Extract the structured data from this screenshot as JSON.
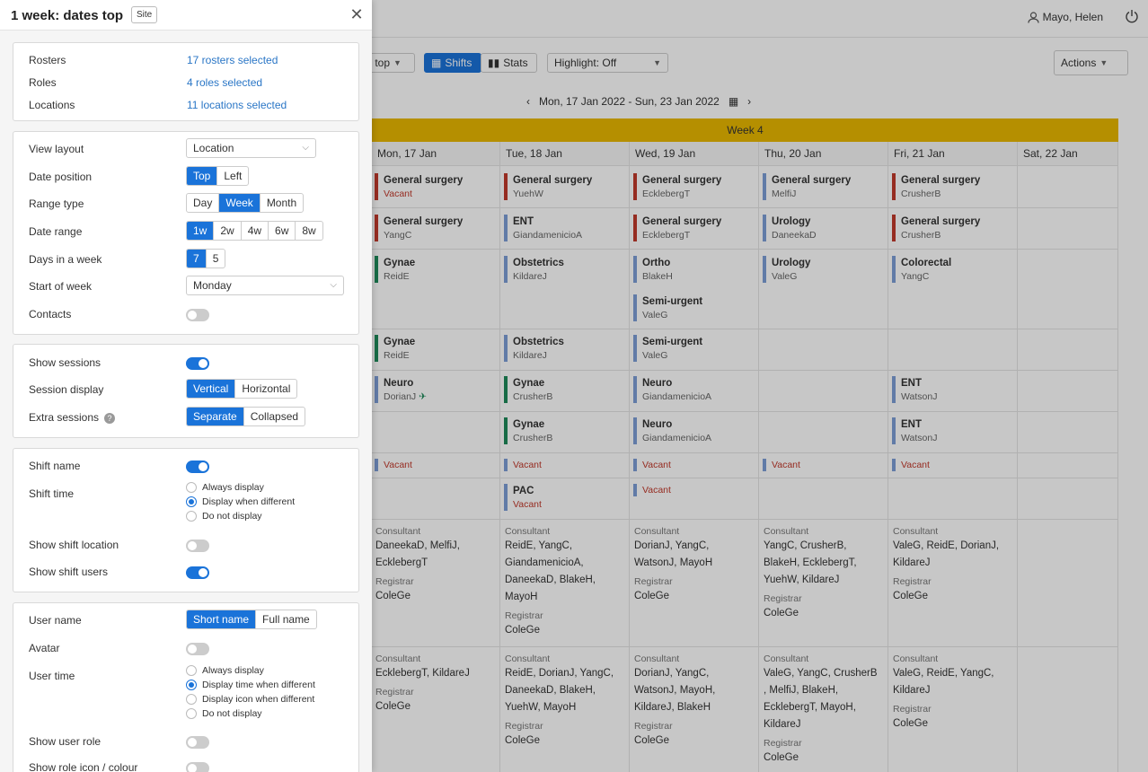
{
  "app": {
    "user_name": "Mayo, Helen",
    "toolbar": {
      "view_label": "s top",
      "shifts_label": "Shifts",
      "stats_label": "Stats",
      "highlight_label": "Highlight: Off",
      "actions_label": "Actions"
    },
    "date_range": "Mon, 17 Jan 2022 - Sun, 23 Jan 2022",
    "week_label": "Week 4",
    "days": [
      "Mon, 17 Jan",
      "Tue, 18 Jan",
      "Wed, 19 Jan",
      "Thu, 20 Jan",
      "Fri, 21 Jan",
      "Sat, 22 Jan"
    ],
    "columns": [
      {
        "shifts": [
          {
            "name": "General surgery",
            "user": "Vacant",
            "vacant": true,
            "color": "#c0392b"
          },
          {
            "name": "General surgery",
            "user": "YangC",
            "color": "#c0392b"
          },
          {
            "name": "Gynae",
            "user": "ReidE",
            "color": "#1e8a5a"
          },
          {
            "name": "Gynae",
            "user": "ReidE",
            "color": "#1e8a5a"
          },
          {
            "name": "Neuro",
            "user": "DorianJ",
            "color": "#7d9ed6"
          },
          {
            "name": "",
            "user": "Vacant",
            "vacant": true,
            "color": "#7d9ed6"
          }
        ],
        "consultant_label": "Consultant",
        "consultant1": "DaneekaD,  MelfiJ,",
        "consultant2": "EcklebergT",
        "registrar_label": "Registrar",
        "registrar": "ColeGe",
        "consultant_b1": "EcklebergT,  KildareJ",
        "registrar_b": "ColeGe"
      },
      {
        "shifts": [
          {
            "name": "General surgery",
            "user": "YuehW",
            "color": "#c0392b"
          },
          {
            "name": "ENT",
            "user": "GiandamenicioA",
            "color": "#7d9ed6"
          },
          {
            "name": "Obstetrics",
            "user": "KildareJ",
            "color": "#7d9ed6"
          },
          {
            "name": "Obstetrics",
            "user": "KildareJ",
            "color": "#7d9ed6"
          },
          {
            "name": "Gynae",
            "user": "CrusherB",
            "color": "#1e8a5a"
          },
          {
            "name": "Gynae",
            "user": "CrusherB",
            "color": "#1e8a5a"
          },
          {
            "name": "",
            "user": "Vacant",
            "vacant": true,
            "color": "#7d9ed6"
          },
          {
            "name": "PAC",
            "user": "Vacant",
            "vacant": true,
            "color": "#7d9ed6"
          }
        ],
        "consultant_label": "Consultant",
        "consultant_lines": [
          "ReidE,  YangC,",
          "GiandamenicioA,",
          "DaneekaD,  BlakeH,",
          "MayoH"
        ],
        "registrar_label": "Registrar",
        "registrar": "ColeGe",
        "consultant_b_lines": [
          "ReidE,  DorianJ,  YangC,",
          "DaneekaD,  BlakeH,",
          "YuehW,  MayoH"
        ],
        "registrar_b": "ColeGe"
      },
      {
        "shifts": [
          {
            "name": "General surgery",
            "user": "EcklebergT",
            "color": "#c0392b"
          },
          {
            "name": "General surgery",
            "user": "EcklebergT",
            "color": "#c0392b"
          },
          {
            "name": "Ortho",
            "user": "BlakeH",
            "color": "#7d9ed6"
          },
          {
            "name": "Semi-urgent",
            "user": "ValeG",
            "color": "#7d9ed6"
          },
          {
            "name": "Semi-urgent",
            "user": "ValeG",
            "color": "#7d9ed6"
          },
          {
            "name": "Neuro",
            "user": "GiandamenicioA",
            "color": "#7d9ed6"
          },
          {
            "name": "Neuro",
            "user": "GiandamenicioA",
            "color": "#7d9ed6"
          },
          {
            "name": "",
            "user": "Vacant",
            "vacant": true,
            "color": "#7d9ed6"
          },
          {
            "name": "",
            "user": "Vacant",
            "vacant": true,
            "color": "#7d9ed6"
          }
        ],
        "consultant_label": "Consultant",
        "consultant_lines": [
          "DorianJ,  YangC,",
          "WatsonJ,  MayoH"
        ],
        "registrar_label": "Registrar",
        "registrar": "ColeGe",
        "consultant_b_lines": [
          "DorianJ,  YangC,",
          "WatsonJ,  MayoH,",
          "KildareJ,  BlakeH"
        ],
        "registrar_b": "ColeGe"
      },
      {
        "shifts": [
          {
            "name": "General surgery",
            "user": "MelfiJ",
            "color": "#7d9ed6"
          },
          {
            "name": "Urology",
            "user": "DaneekaD",
            "color": "#7d9ed6"
          },
          {
            "name": "Urology",
            "user": "ValeG",
            "color": "#7d9ed6"
          },
          {
            "name": "",
            "user": "Vacant",
            "vacant": true,
            "color": "#7d9ed6"
          }
        ],
        "consultant_label": "Consultant",
        "consultant_lines": [
          "YangC,  CrusherB,",
          "BlakeH,  EcklebergT,",
          "YuehW,  KildareJ"
        ],
        "registrar_label": "Registrar",
        "registrar": "ColeGe",
        "consultant_b_lines": [
          "ValeG,  YangC,  CrusherB",
          ",  MelfiJ,  BlakeH,",
          "EcklebergT,  MayoH,",
          "KildareJ"
        ],
        "registrar_b": "ColeGe"
      },
      {
        "shifts": [
          {
            "name": "General surgery",
            "user": "CrusherB",
            "color": "#c0392b"
          },
          {
            "name": "General surgery",
            "user": "CrusherB",
            "color": "#c0392b"
          },
          {
            "name": "Colorectal",
            "user": "YangC",
            "color": "#7d9ed6"
          },
          {
            "name": "ENT",
            "user": "WatsonJ",
            "color": "#7d9ed6"
          },
          {
            "name": "ENT",
            "user": "WatsonJ",
            "color": "#7d9ed6"
          },
          {
            "name": "",
            "user": "Vacant",
            "vacant": true,
            "color": "#7d9ed6"
          }
        ],
        "consultant_label": "Consultant",
        "consultant_lines": [
          "ValeG,  ReidE,  DorianJ,",
          "KildareJ"
        ],
        "registrar_label": "Registrar",
        "registrar": "ColeGe",
        "consultant_b_lines": [
          "ValeG,  ReidE,  YangC,",
          "KildareJ"
        ],
        "registrar_b": "ColeGe"
      }
    ]
  },
  "panel": {
    "title": "1 week: dates top",
    "badge": "Site",
    "filters": {
      "rosters_label": "Rosters",
      "rosters_value": "17 rosters selected",
      "roles_label": "Roles",
      "roles_value": "4 roles selected",
      "locations_label": "Locations",
      "locations_value": "11 locations selected"
    },
    "layout": {
      "view_layout_label": "View layout",
      "view_layout_value": "Location",
      "date_position_label": "Date position",
      "date_position_options": [
        "Top",
        "Left"
      ],
      "range_type_label": "Range type",
      "range_type_options": [
        "Day",
        "Week",
        "Month"
      ],
      "date_range_label": "Date range",
      "date_range_options": [
        "1w",
        "2w",
        "4w",
        "6w",
        "8w"
      ],
      "days_label": "Days in a week",
      "days_options": [
        "7",
        "5"
      ],
      "start_label": "Start of week",
      "start_value": "Monday",
      "contacts_label": "Contacts"
    },
    "sessions": {
      "show_label": "Show sessions",
      "display_label": "Session display",
      "display_options": [
        "Vertical",
        "Horizontal"
      ],
      "extra_label": "Extra sessions",
      "extra_options": [
        "Separate",
        "Collapsed"
      ]
    },
    "shift": {
      "name_label": "Shift name",
      "time_label": "Shift time",
      "time_options": [
        "Always display",
        "Display when different",
        "Do not display"
      ],
      "location_label": "Show shift location",
      "users_label": "Show shift users"
    },
    "user": {
      "name_label": "User name",
      "name_options": [
        "Short name",
        "Full name"
      ],
      "avatar_label": "Avatar",
      "time_label": "User time",
      "time_options": [
        "Always display",
        "Display time when different",
        "Display icon when different",
        "Do not display"
      ],
      "role_label": "Show user role",
      "role_icon_label": "Show role icon / colour"
    }
  }
}
